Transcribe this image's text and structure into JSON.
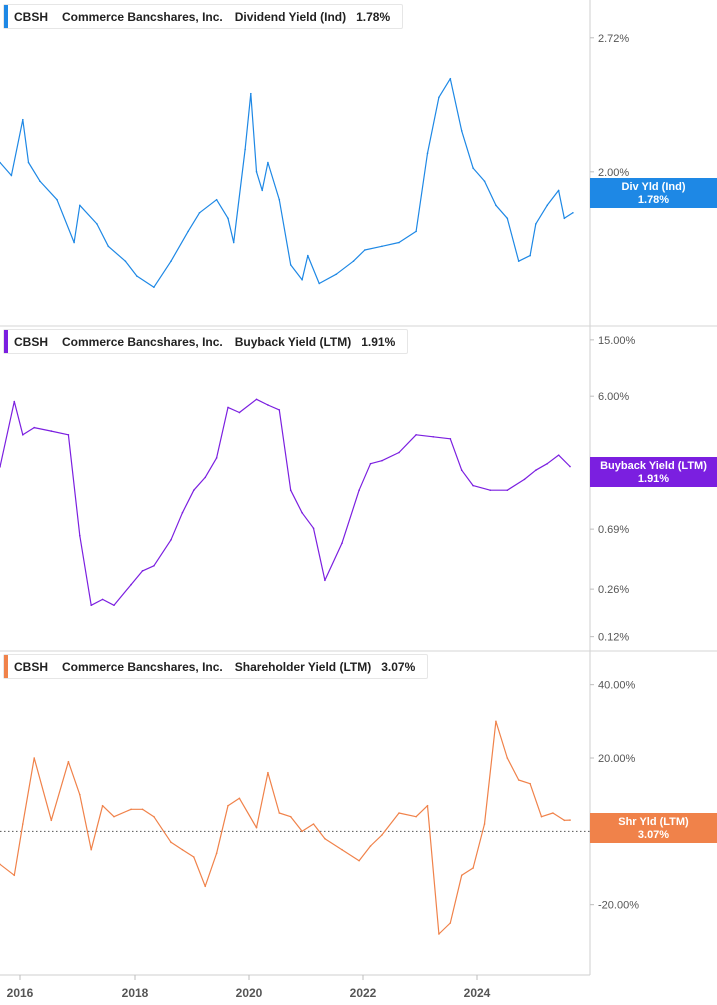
{
  "legends": [
    {
      "ticker": "CBSH",
      "company": "Commerce Bancshares, Inc.",
      "metric": "Dividend Yield (Ind)",
      "value": "1.78%",
      "color": "#1e88e5"
    },
    {
      "ticker": "CBSH",
      "company": "Commerce Bancshares, Inc.",
      "metric": "Buyback Yield (LTM)",
      "value": "1.91%",
      "color": "#7b1fe0"
    },
    {
      "ticker": "CBSH",
      "company": "Commerce Bancshares, Inc.",
      "metric": "Shareholder Yield (LTM)",
      "value": "3.07%",
      "color": "#f0824a"
    }
  ],
  "x_ticks": [
    "2016",
    "2018",
    "2020",
    "2022",
    "2024"
  ],
  "chart_data": [
    {
      "type": "line",
      "title": "CBSH Commerce Bancshares, Inc. Dividend Yield (Ind) 1.78%",
      "scale": "linear",
      "ylim": [
        1.22,
        2.88
      ],
      "ytick_values": [
        2.72,
        2.0
      ],
      "ytick_labels": [
        "2.72%",
        "2.00%"
      ],
      "end_tag": {
        "line1": "Div Yld (Ind)",
        "line2": "1.78%",
        "value": 1.78
      },
      "color": "#1e88e5",
      "series": [
        {
          "x": [
            2015.6,
            2015.8,
            2016.0,
            2016.1,
            2016.3,
            2016.6,
            2016.9,
            2017.0,
            2017.3,
            2017.5,
            2017.8,
            2018.0,
            2018.3,
            2018.6,
            2018.9,
            2019.1,
            2019.4,
            2019.6,
            2019.7,
            2019.9,
            2020.0,
            2020.1,
            2020.2,
            2020.3,
            2020.5,
            2020.7,
            2020.9,
            2021.0,
            2021.2,
            2021.5,
            2021.8,
            2022.0,
            2022.3,
            2022.6,
            2022.9,
            2023.1,
            2023.3,
            2023.5,
            2023.7,
            2023.9,
            2024.1,
            2024.3,
            2024.5,
            2024.7,
            2024.9,
            2025.0,
            2025.2,
            2025.4,
            2025.5,
            2025.65
          ],
          "values": [
            2.05,
            1.98,
            2.28,
            2.05,
            1.95,
            1.85,
            1.62,
            1.82,
            1.72,
            1.6,
            1.52,
            1.44,
            1.38,
            1.52,
            1.68,
            1.78,
            1.85,
            1.75,
            1.62,
            2.12,
            2.42,
            2.0,
            1.9,
            2.05,
            1.85,
            1.5,
            1.42,
            1.55,
            1.4,
            1.45,
            1.52,
            1.58,
            1.6,
            1.62,
            1.68,
            2.1,
            2.4,
            2.5,
            2.22,
            2.02,
            1.95,
            1.82,
            1.75,
            1.52,
            1.55,
            1.72,
            1.82,
            1.9,
            1.75,
            1.78
          ]
        }
      ]
    },
    {
      "type": "line",
      "title": "CBSH Commerce Bancshares, Inc. Buyback Yield (LTM) 1.91%",
      "scale": "log",
      "ylim": [
        0.11,
        16.5
      ],
      "ytick_values": [
        15.0,
        6.0,
        0.69,
        0.26,
        0.12
      ],
      "ytick_labels": [
        "15.00%",
        "6.00%",
        "0.69%",
        "0.26%",
        "0.12%"
      ],
      "end_tag": {
        "line1": "Buyback Yield (LTM)",
        "line2": "1.91%",
        "value": 1.91
      },
      "color": "#7b1fe0",
      "series": [
        {
          "x": [
            2015.6,
            2015.85,
            2016.0,
            2016.2,
            2016.5,
            2016.8,
            2017.0,
            2017.2,
            2017.4,
            2017.6,
            2017.9,
            2018.1,
            2018.3,
            2018.6,
            2018.8,
            2019.0,
            2019.2,
            2019.4,
            2019.6,
            2019.8,
            2020.1,
            2020.3,
            2020.5,
            2020.7,
            2020.9,
            2021.1,
            2021.3,
            2021.6,
            2021.9,
            2022.1,
            2022.3,
            2022.6,
            2022.9,
            2023.2,
            2023.5,
            2023.7,
            2023.9,
            2024.2,
            2024.5,
            2024.8,
            2025.0,
            2025.2,
            2025.4,
            2025.6
          ],
          "values": [
            1.9,
            5.5,
            3.2,
            3.6,
            3.4,
            3.2,
            0.62,
            0.2,
            0.22,
            0.2,
            0.28,
            0.35,
            0.38,
            0.58,
            0.9,
            1.3,
            1.6,
            2.2,
            5.0,
            4.6,
            5.7,
            5.2,
            4.8,
            1.3,
            0.9,
            0.7,
            0.3,
            0.55,
            1.3,
            2.0,
            2.1,
            2.4,
            3.2,
            3.1,
            3.0,
            1.8,
            1.4,
            1.3,
            1.3,
            1.55,
            1.8,
            2.0,
            2.3,
            1.91
          ]
        }
      ]
    },
    {
      "type": "line",
      "title": "CBSH Commerce Bancshares, Inc. Shareholder Yield (LTM) 3.07%",
      "scale": "linear",
      "ylim": [
        -37,
        47
      ],
      "ytick_values": [
        40.0,
        20.0,
        0.0,
        -20.0
      ],
      "ytick_labels": [
        "40.00%",
        "20.00%",
        "0.00%",
        "-20.00%"
      ],
      "zero_line": true,
      "end_tag": {
        "line1": "Shr Yld (LTM)",
        "line2": "3.07%",
        "value": 3.07
      },
      "color": "#f0824a",
      "series": [
        {
          "x": [
            2015.6,
            2015.85,
            2016.0,
            2016.2,
            2016.5,
            2016.8,
            2017.0,
            2017.2,
            2017.4,
            2017.6,
            2017.9,
            2018.1,
            2018.3,
            2018.6,
            2018.8,
            2019.0,
            2019.2,
            2019.4,
            2019.6,
            2019.8,
            2020.1,
            2020.3,
            2020.5,
            2020.7,
            2020.9,
            2021.1,
            2021.3,
            2021.6,
            2021.9,
            2022.1,
            2022.3,
            2022.6,
            2022.9,
            2023.1,
            2023.3,
            2023.5,
            2023.7,
            2023.9,
            2024.1,
            2024.3,
            2024.5,
            2024.7,
            2024.9,
            2025.1,
            2025.3,
            2025.5,
            2025.6
          ],
          "values": [
            -9,
            -12,
            2,
            20,
            3,
            19,
            10,
            -5,
            7,
            4,
            6,
            6,
            4,
            -3,
            -5,
            -7,
            -15,
            -6,
            7,
            9,
            1,
            16,
            5,
            4,
            0,
            2,
            -2,
            -5,
            -8,
            -4,
            -1,
            5,
            4,
            7,
            -28,
            -25,
            -12,
            -10,
            2,
            30,
            20,
            14,
            13,
            4,
            5,
            3,
            3.07
          ]
        }
      ]
    }
  ]
}
